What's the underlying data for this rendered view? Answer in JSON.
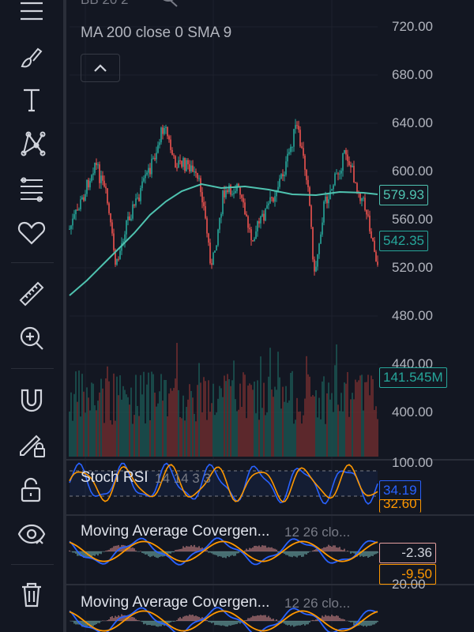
{
  "toolbar": {
    "tools": [
      {
        "name": "menu-icon"
      },
      {
        "name": "brush-icon"
      },
      {
        "name": "text-icon"
      },
      {
        "name": "pattern-icon"
      },
      {
        "name": "fib-icon"
      },
      {
        "name": "heart-icon"
      },
      {
        "name": "ruler-icon"
      },
      {
        "name": "zoom-in-icon"
      },
      {
        "name": "magnet-icon"
      },
      {
        "name": "lock-drawing-icon"
      },
      {
        "name": "unlock-icon"
      },
      {
        "name": "eye-icon"
      },
      {
        "name": "trash-icon"
      }
    ]
  },
  "main": {
    "top_partial_label": "BB 20 2",
    "ma_label": "MA 200 close 0 SMA 9",
    "price_axis": [
      "720.00",
      "680.00",
      "640.00",
      "600.00",
      "560.00",
      "520.00",
      "480.00",
      "440.00",
      "400.00"
    ],
    "badges": {
      "ma_price": "579.93",
      "last_price": "542.35",
      "volume": "141.545M"
    },
    "stoch": {
      "title": "Stoch RSI",
      "params": "14 14 3 3",
      "axis_top": "100.00",
      "k_value": "34.19",
      "d_value_partial": "32.60"
    },
    "macd1": {
      "title": "Moving Average Covergen...",
      "params": "12 26 clo...",
      "value1": "-2.36",
      "value2": "-9.50"
    },
    "macd2": {
      "title": "Moving Average Covergen...",
      "params": "12 26 clo...",
      "axis_top": "20.00"
    }
  },
  "colors": {
    "background": "#131722",
    "up": "#26a69a",
    "down": "#ef5350",
    "ma": "#4fc3b0",
    "stoch_k": "#2962ff",
    "stoch_d": "#ff9800",
    "macd_fast": "#2962ff",
    "macd_signal": "#ff9800"
  }
}
